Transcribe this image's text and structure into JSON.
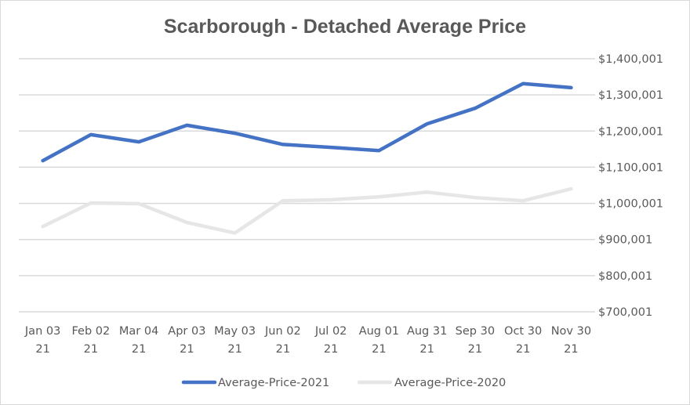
{
  "chart_data": {
    "type": "line",
    "title": "Scarborough - Detached Average Price",
    "xlabel": "",
    "ylabel": "",
    "categories": [
      [
        "Jan 03",
        "21"
      ],
      [
        "Feb 02",
        "21"
      ],
      [
        "Mar 04",
        "21"
      ],
      [
        "Apr 03",
        "21"
      ],
      [
        "May 03",
        "21"
      ],
      [
        "Jun 02",
        "21"
      ],
      [
        "Jul 02",
        "21"
      ],
      [
        "Aug 01",
        "21"
      ],
      [
        "Aug 31",
        "21"
      ],
      [
        "Sep 30",
        "21"
      ],
      [
        "Oct 30",
        "21"
      ],
      [
        "Nov 30",
        "21"
      ]
    ],
    "ylim": [
      700001,
      1400001
    ],
    "yticks": [
      1400001,
      1300001,
      1200001,
      1100001,
      1000001,
      900001,
      800001,
      700001
    ],
    "ytick_labels": [
      "$1,400,001",
      "$1,300,001",
      "$1,200,001",
      "$1,100,001",
      "$1,000,001",
      "$900,001",
      "$800,001",
      "$700,001"
    ],
    "y_axis_side": "right",
    "grid": true,
    "legend_position": "bottom",
    "series": [
      {
        "name": "Average-Price-2021",
        "color": "#4472c4",
        "values": [
          1118000,
          1190000,
          1170000,
          1216000,
          1194000,
          1163000,
          1155000,
          1146000,
          1220000,
          1263000,
          1331000,
          1320000
        ]
      },
      {
        "name": "Average-Price-2020",
        "color": "#e7e6e6",
        "values": [
          936000,
          1001000,
          999000,
          947000,
          918000,
          1007000,
          1010000,
          1018000,
          1031000,
          1016000,
          1007000,
          1040000
        ]
      }
    ]
  }
}
